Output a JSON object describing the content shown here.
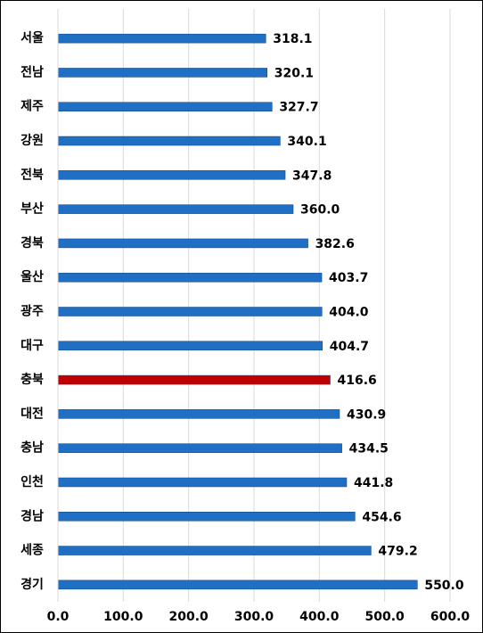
{
  "chart_data": {
    "type": "hbar",
    "categories": [
      "서울",
      "전남",
      "제주",
      "강원",
      "전북",
      "부산",
      "경북",
      "울산",
      "광주",
      "대구",
      "충북",
      "대전",
      "충남",
      "인천",
      "경남",
      "세종",
      "경기"
    ],
    "values": [
      318.1,
      320.1,
      327.7,
      340.1,
      347.8,
      360.0,
      382.6,
      403.7,
      404.0,
      404.7,
      416.6,
      430.9,
      434.5,
      441.8,
      454.6,
      479.2,
      550.0
    ],
    "value_labels": [
      "318.1",
      "320.1",
      "327.7",
      "340.1",
      "347.8",
      "360.0",
      "382.6",
      "403.7",
      "404.0",
      "404.7",
      "416.6",
      "430.9",
      "434.5",
      "441.8",
      "454.6",
      "479.2",
      "550.0"
    ],
    "colors": [
      "#1f6fc4",
      "#1f6fc4",
      "#1f6fc4",
      "#1f6fc4",
      "#1f6fc4",
      "#1f6fc4",
      "#1f6fc4",
      "#1f6fc4",
      "#1f6fc4",
      "#1f6fc4",
      "#c00000",
      "#1f6fc4",
      "#1f6fc4",
      "#1f6fc4",
      "#1f6fc4",
      "#1f6fc4",
      "#1f6fc4"
    ],
    "xlim": [
      0,
      600
    ],
    "xticks": [
      {
        "value": 0,
        "label": "0.0"
      },
      {
        "value": 100,
        "label": "100.0"
      },
      {
        "value": 200,
        "label": "200.0"
      },
      {
        "value": 300,
        "label": "300.0"
      },
      {
        "value": 400,
        "label": "400.0"
      },
      {
        "value": 500,
        "label": "500.0"
      },
      {
        "value": 600,
        "label": "600.0"
      }
    ],
    "grid": true
  }
}
